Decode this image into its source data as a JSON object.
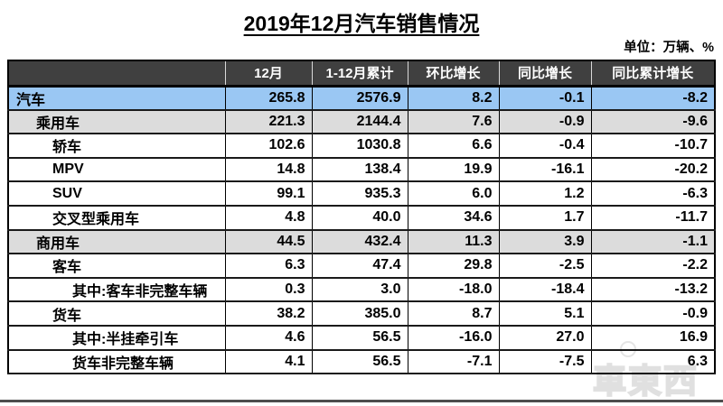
{
  "title": "2019年12月汽车销售情况",
  "unit_note": "单位：万辆、%",
  "watermark": "車東西",
  "colors": {
    "header_bg": "#404040",
    "total_row_blue": "#9AC7F3",
    "subtotal_row_gray": "#DCDCDC",
    "border_black": "#000000"
  },
  "table": {
    "headers": [
      "",
      "12月",
      "1-12月累计",
      "环比增长",
      "同比增长",
      "同比累计增长"
    ],
    "rows": [
      {
        "label": "汽车",
        "indent": 0,
        "row_type": "total",
        "values": [
          "265.8",
          "2576.9",
          "8.2",
          "-0.1",
          "-8.2"
        ]
      },
      {
        "label": "乘用车",
        "indent": 1,
        "row_type": "subtotal",
        "values": [
          "221.3",
          "2144.4",
          "7.6",
          "-0.9",
          "-9.6"
        ]
      },
      {
        "label": "轿车",
        "indent": 2,
        "row_type": "detail",
        "values": [
          "102.6",
          "1030.8",
          "6.6",
          "-0.4",
          "-10.7"
        ]
      },
      {
        "label": "MPV",
        "indent": 2,
        "row_type": "detail",
        "values": [
          "14.8",
          "138.4",
          "19.9",
          "-16.1",
          "-20.2"
        ]
      },
      {
        "label": "SUV",
        "indent": 2,
        "row_type": "detail",
        "values": [
          "99.1",
          "935.3",
          "6.0",
          "1.2",
          "-6.3"
        ]
      },
      {
        "label": "交叉型乘用车",
        "indent": 2,
        "row_type": "detail",
        "values": [
          "4.8",
          "40.0",
          "34.6",
          "1.7",
          "-11.7"
        ]
      },
      {
        "label": "商用车",
        "indent": 1,
        "row_type": "subtotal",
        "values": [
          "44.5",
          "432.4",
          "11.3",
          "3.9",
          "-1.1"
        ]
      },
      {
        "label": "客车",
        "indent": 2,
        "row_type": "detail",
        "values": [
          "6.3",
          "47.4",
          "29.8",
          "-2.5",
          "-2.2"
        ]
      },
      {
        "label": "其中:客车非完整车辆",
        "indent": 3,
        "row_type": "detail",
        "values": [
          "0.3",
          "3.0",
          "-18.0",
          "-18.4",
          "-13.2"
        ]
      },
      {
        "label": "货车",
        "indent": 2,
        "row_type": "detail",
        "values": [
          "38.2",
          "385.0",
          "8.7",
          "5.1",
          "-0.9"
        ]
      },
      {
        "label": "其中:半挂牵引车",
        "indent": 3,
        "row_type": "detail",
        "values": [
          "4.6",
          "56.5",
          "-16.0",
          "27.0",
          "16.9"
        ]
      },
      {
        "label": "货车非完整车辆",
        "indent": 3,
        "row_type": "detail",
        "values": [
          "4.1",
          "56.5",
          "-7.1",
          "-7.5",
          "6.3"
        ]
      }
    ]
  }
}
